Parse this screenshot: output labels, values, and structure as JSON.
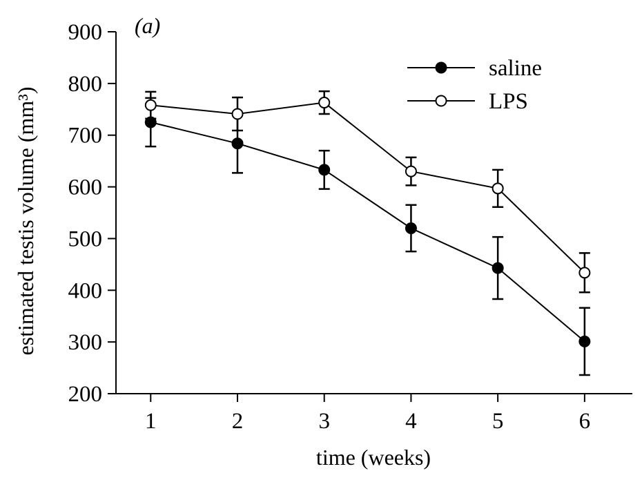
{
  "chart_data": {
    "type": "line",
    "panel_label": "(a)",
    "xlabel": "time (weeks)",
    "ylabel": "estimated testis volume (mm³)",
    "x": [
      1,
      2,
      3,
      4,
      5,
      6
    ],
    "xticks": [
      "1",
      "2",
      "3",
      "4",
      "5",
      "6"
    ],
    "xlim": [
      0.6,
      6.55
    ],
    "yticks": [
      "200",
      "300",
      "400",
      "500",
      "600",
      "700",
      "800",
      "900"
    ],
    "ylim": [
      200,
      900
    ],
    "grid": false,
    "legend_position": "top-right",
    "series": [
      {
        "name": "saline",
        "marker": "filled-circle",
        "color": "#000000",
        "values": [
          725,
          684,
          633,
          520,
          443,
          301
        ],
        "error": [
          47,
          57,
          37,
          45,
          60,
          65
        ]
      },
      {
        "name": "LPS",
        "marker": "open-circle",
        "color": "#000000",
        "values": [
          758,
          741,
          763,
          630,
          597,
          434
        ],
        "error": [
          26,
          32,
          22,
          27,
          36,
          38
        ]
      }
    ]
  }
}
